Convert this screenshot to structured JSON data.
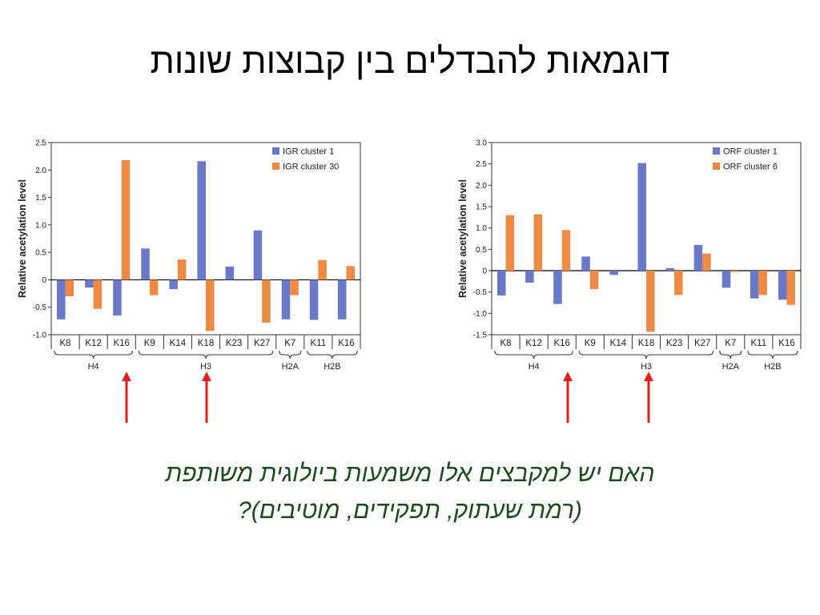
{
  "slide": {
    "title": "דוגמאות להבדלים בין קבוצות שונות",
    "question_line1": "האם יש למקבצים אלו משמעות ביולוגית משותפת",
    "question_line2": "(רמת שעתוק, תפקידים, מוטיבים)?"
  },
  "colors": {
    "blue": "#6a78c8",
    "orange": "#ee8a44",
    "arrow": "#e0201c",
    "question": "#1b4d1b"
  },
  "chart_data": [
    {
      "type": "bar",
      "ylabel": "Relative acetylation level",
      "ylim": [
        -1.0,
        2.5
      ],
      "yticks": [
        "2.5",
        "2.0",
        "1.5",
        "1.0",
        "0.5",
        "0",
        "-0.5",
        "-1.0"
      ],
      "ytick_values": [
        2.5,
        2.0,
        1.5,
        1.0,
        0.5,
        0,
        -0.5,
        -1.0
      ],
      "categories": [
        "K8",
        "K12",
        "K16",
        "K9",
        "K14",
        "K18",
        "K23",
        "K27",
        "K7",
        "K11",
        "K16"
      ],
      "groups": [
        {
          "label": "H4",
          "categories": [
            "K8",
            "K12",
            "K16"
          ]
        },
        {
          "label": "H3",
          "categories": [
            "K9",
            "K14",
            "K18",
            "K23",
            "K27"
          ]
        },
        {
          "label": "H2A",
          "categories": [
            "K7"
          ]
        },
        {
          "label": "H2B",
          "categories": [
            "K11",
            "K16"
          ]
        }
      ],
      "legend_position": "top-right",
      "series": [
        {
          "name": "IGR cluster 1",
          "color": "#6a78c8",
          "values": [
            -0.72,
            -0.14,
            -0.65,
            0.57,
            -0.17,
            2.16,
            0.24,
            0.9,
            -0.72,
            -0.73,
            -0.72
          ]
        },
        {
          "name": "IGR cluster 30",
          "color": "#ee8a44",
          "values": [
            -0.3,
            -0.53,
            2.18,
            -0.28,
            0.37,
            -0.93,
            0.0,
            -0.78,
            -0.28,
            0.36,
            0.25
          ]
        }
      ]
    },
    {
      "type": "bar",
      "ylabel": "Relative acetylation level",
      "ylim": [
        -1.5,
        3.0
      ],
      "yticks": [
        "3.0",
        "2.5",
        "2.0",
        "1.5",
        "1.0",
        "0.5",
        "0",
        "-0.5",
        "-1.0",
        "-1.5"
      ],
      "ytick_values": [
        3.0,
        2.5,
        2.0,
        1.5,
        1.0,
        0.5,
        0,
        -0.5,
        -1.0,
        -1.5
      ],
      "categories": [
        "K8",
        "K12",
        "K16",
        "K9",
        "K14",
        "K18",
        "K23",
        "K27",
        "K7",
        "K11",
        "K16"
      ],
      "groups": [
        {
          "label": "H4",
          "categories": [
            "K8",
            "K12",
            "K16"
          ]
        },
        {
          "label": "H3",
          "categories": [
            "K9",
            "K14",
            "K18",
            "K23",
            "K27"
          ]
        },
        {
          "label": "H2A",
          "categories": [
            "K7"
          ]
        },
        {
          "label": "H2B",
          "categories": [
            "K11",
            "K16"
          ]
        }
      ],
      "legend_position": "top-right",
      "series": [
        {
          "name": "ORF cluster 1",
          "color": "#6a78c8",
          "values": [
            -0.58,
            -0.28,
            -0.78,
            0.33,
            -0.1,
            2.52,
            0.06,
            0.6,
            -0.4,
            -0.65,
            -0.68
          ]
        },
        {
          "name": "ORF cluster 6",
          "color": "#ee8a44",
          "values": [
            1.3,
            1.32,
            0.95,
            -0.43,
            0.0,
            -1.43,
            -0.57,
            0.4,
            -0.03,
            -0.57,
            -0.8
          ]
        }
      ]
    }
  ]
}
